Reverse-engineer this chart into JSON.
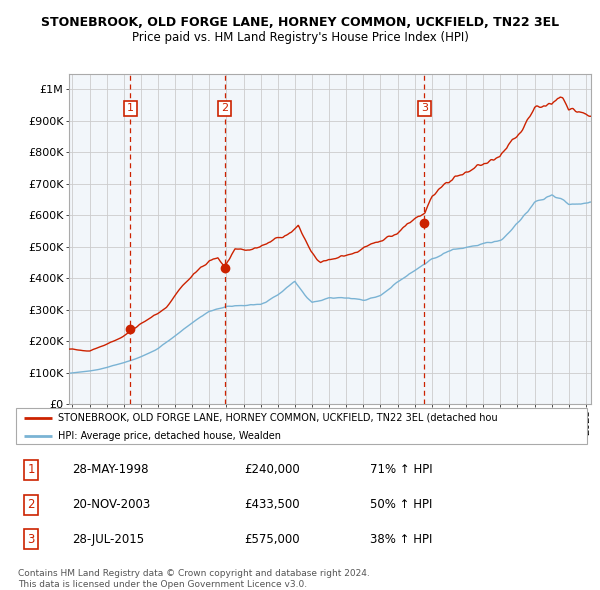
{
  "title_line1": "STONEBROOK, OLD FORGE LANE, HORNEY COMMON, UCKFIELD, TN22 3EL",
  "title_line2": "Price paid vs. HM Land Registry's House Price Index (HPI)",
  "ylim": [
    0,
    1050000
  ],
  "yticks": [
    0,
    100000,
    200000,
    300000,
    400000,
    500000,
    600000,
    700000,
    800000,
    900000,
    1000000
  ],
  "ytick_labels": [
    "£0",
    "£100K",
    "£200K",
    "£300K",
    "£400K",
    "£500K",
    "£600K",
    "£700K",
    "£800K",
    "£900K",
    "£1M"
  ],
  "hpi_color": "#7ab3d4",
  "price_color": "#cc2200",
  "vline_color": "#cc2200",
  "grid_color": "#cccccc",
  "shade_color": "#dce8f2",
  "sales": [
    {
      "year": 1998.38,
      "price": 240000,
      "label": "1"
    },
    {
      "year": 2003.89,
      "price": 433500,
      "label": "2"
    },
    {
      "year": 2015.56,
      "price": 575000,
      "label": "3"
    }
  ],
  "legend_label_red": "STONEBROOK, OLD FORGE LANE, HORNEY COMMON, UCKFIELD, TN22 3EL (detached hou",
  "legend_label_blue": "HPI: Average price, detached house, Wealden",
  "table": [
    {
      "num": "1",
      "date": "28-MAY-1998",
      "price": "£240,000",
      "hpi": "71% ↑ HPI"
    },
    {
      "num": "2",
      "date": "20-NOV-2003",
      "price": "£433,500",
      "hpi": "50% ↑ HPI"
    },
    {
      "num": "3",
      "date": "28-JUL-2015",
      "price": "£575,000",
      "hpi": "38% ↑ HPI"
    }
  ],
  "footer": "Contains HM Land Registry data © Crown copyright and database right 2024.\nThis data is licensed under the Open Government Licence v3.0.",
  "xlim_start": 1994.8,
  "xlim_end": 2025.3
}
